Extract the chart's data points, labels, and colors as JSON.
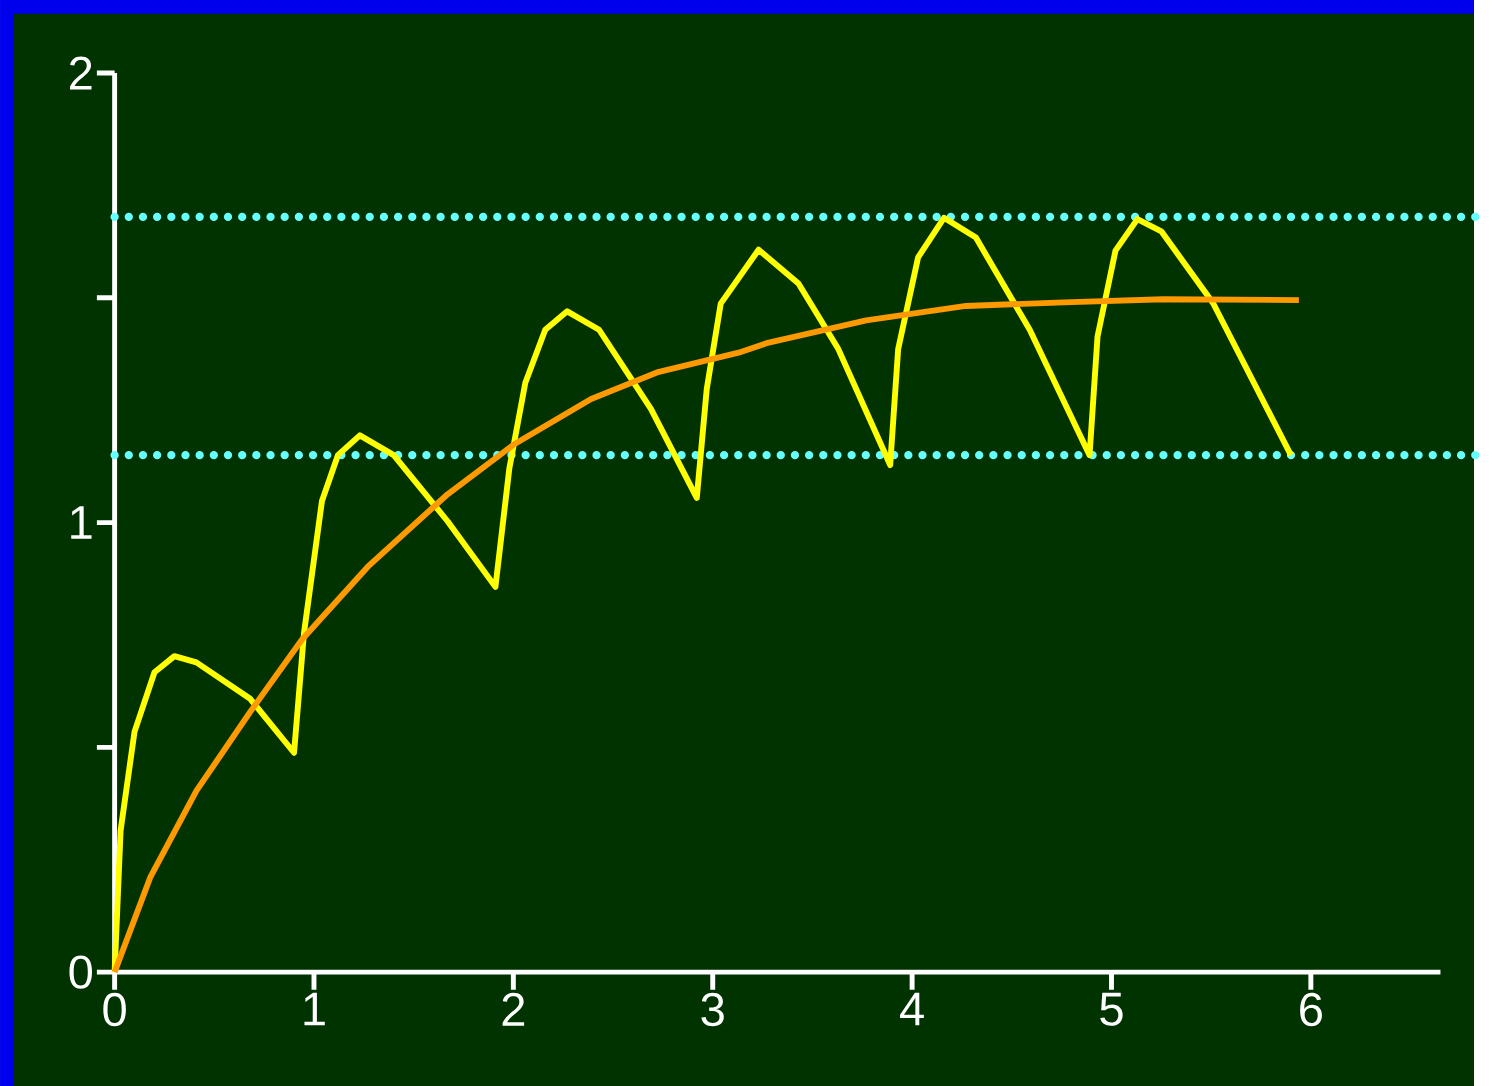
{
  "chart_data": {
    "type": "line",
    "xlim": [
      0,
      6.65
    ],
    "ylim": [
      0,
      2
    ],
    "xticks": [
      0,
      1,
      2,
      3,
      4,
      5,
      6
    ],
    "yticks": [
      0,
      {
        "value": 0.5,
        "label": null
      },
      1,
      {
        "value": 1.5,
        "label": null
      },
      2
    ],
    "grid": false,
    "marker": "none",
    "line_style": "solid",
    "series": [
      {
        "color": "#ffff00",
        "x": [
          0,
          0.03,
          0.1,
          0.2,
          0.3,
          0.41,
          0.68,
          0.9,
          0.95,
          1.04,
          1.12,
          1.23,
          1.4,
          1.67,
          1.91,
          1.98,
          2.06,
          2.16,
          2.27,
          2.43,
          2.69,
          2.92,
          2.97,
          3.04,
          3.23,
          3.43,
          3.63,
          3.89,
          3.93,
          4.03,
          4.16,
          4.32,
          4.59,
          4.89,
          4.93,
          5.02,
          5.13,
          5.25,
          5.51,
          5.9
        ],
        "values": [
          0,
          0.315,
          0.535,
          0.667,
          0.703,
          0.689,
          0.608,
          0.488,
          0.755,
          1.048,
          1.15,
          1.194,
          1.15,
          1.003,
          0.857,
          1.121,
          1.311,
          1.429,
          1.47,
          1.429,
          1.253,
          1.055,
          1.297,
          1.487,
          1.607,
          1.532,
          1.386,
          1.128,
          1.386,
          1.59,
          1.678,
          1.634,
          1.429,
          1.15,
          1.414,
          1.605,
          1.675,
          1.648,
          1.488,
          1.15
        ]
      },
      {
        "color": "#ff9900",
        "x": [
          0,
          0.18,
          0.41,
          0.68,
          0.94,
          1.27,
          1.67,
          2.0,
          2.39,
          2.72,
          3.13,
          3.27,
          3.77,
          4.27,
          4.76,
          5.26,
          5.94
        ],
        "values": [
          0,
          0.212,
          0.403,
          0.579,
          0.74,
          0.902,
          1.063,
          1.173,
          1.275,
          1.334,
          1.378,
          1.399,
          1.45,
          1.482,
          1.49,
          1.497,
          1.495
        ]
      }
    ],
    "ref_lines": [
      {
        "axis": "y",
        "value": 1.68,
        "color": "#66ffff",
        "line_style": "dotted"
      },
      {
        "axis": "y",
        "value": 1.15,
        "color": "#66ffff",
        "line_style": "dotted"
      }
    ]
  }
}
